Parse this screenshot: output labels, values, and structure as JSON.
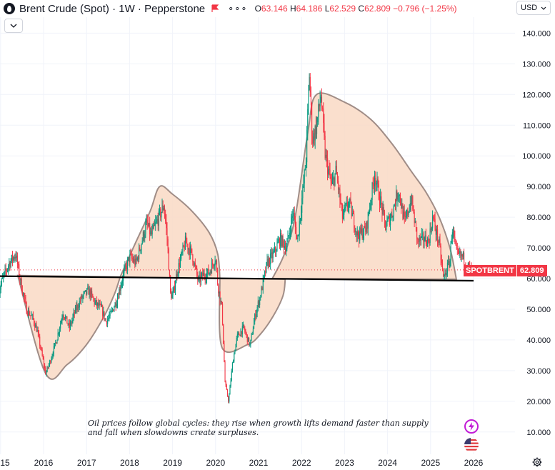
{
  "header": {
    "symbol": "Brent Crude (Spot)",
    "interval": "1W",
    "source": "Pepperstone",
    "more": "∘∘∘",
    "ohlc": {
      "open_label": "O",
      "open": "63.146",
      "high_label": "H",
      "high": "64.186",
      "low_label": "L",
      "low": "62.529",
      "close_label": "C",
      "close": "62.809",
      "change": "−0.796 (−1.25%)"
    }
  },
  "currency_selector": "USD",
  "price_badge": {
    "symbol": "SPOTBRENT",
    "value": "62.809"
  },
  "annotation": "Oil prices follow global cycles: they rise when growth lifts demand faster than supply and fall when slowdowns create surpluses.",
  "colors": {
    "up": "#089981",
    "down": "#f23645",
    "fill": "#f9d9c4",
    "outline": "#a08d87",
    "support": "#000000"
  },
  "chart_data": {
    "type": "candlestick",
    "x_tick_labels": [
      "15",
      "2016",
      "2017",
      "2018",
      "2019",
      "2020",
      "2021",
      "2022",
      "2023",
      "2024",
      "2025",
      "2026"
    ],
    "y_tick_labels": [
      "140.000",
      "130.000",
      "120.000",
      "110.000",
      "100.000",
      "90.000",
      "80.000",
      "70.000",
      "60.000",
      "50.000",
      "40.000",
      "30.000",
      "20.000",
      "10.000"
    ],
    "ylim": [
      5,
      148
    ],
    "xlim": [
      2014.9,
      2026.2
    ],
    "last_price": 62.809,
    "support_level": {
      "from": [
        2014.9,
        60.8
      ],
      "to": [
        2026.0,
        59.3
      ]
    },
    "price_path": [
      [
        2014.95,
        55
      ],
      [
        2015.05,
        60
      ],
      [
        2015.2,
        65
      ],
      [
        2015.35,
        68
      ],
      [
        2015.45,
        60
      ],
      [
        2015.6,
        50
      ],
      [
        2015.75,
        47
      ],
      [
        2015.85,
        43
      ],
      [
        2015.95,
        36
      ],
      [
        2016.05,
        29
      ],
      [
        2016.15,
        33
      ],
      [
        2016.3,
        40
      ],
      [
        2016.45,
        49
      ],
      [
        2016.6,
        44
      ],
      [
        2016.75,
        50
      ],
      [
        2016.9,
        54
      ],
      [
        2017.05,
        56
      ],
      [
        2017.2,
        52
      ],
      [
        2017.35,
        50
      ],
      [
        2017.45,
        46
      ],
      [
        2017.55,
        48
      ],
      [
        2017.7,
        53
      ],
      [
        2017.85,
        61
      ],
      [
        2018.0,
        67
      ],
      [
        2018.15,
        65
      ],
      [
        2018.3,
        73
      ],
      [
        2018.4,
        78
      ],
      [
        2018.5,
        74
      ],
      [
        2018.65,
        79
      ],
      [
        2018.8,
        84
      ],
      [
        2018.88,
        72
      ],
      [
        2018.95,
        55
      ],
      [
        2019.0,
        54
      ],
      [
        2019.1,
        62
      ],
      [
        2019.3,
        72
      ],
      [
        2019.45,
        68
      ],
      [
        2019.6,
        59
      ],
      [
        2019.7,
        61
      ],
      [
        2019.85,
        62
      ],
      [
        2020.0,
        67
      ],
      [
        2020.05,
        58
      ],
      [
        2020.15,
        50
      ],
      [
        2020.22,
        26
      ],
      [
        2020.3,
        20
      ],
      [
        2020.4,
        33
      ],
      [
        2020.5,
        41
      ],
      [
        2020.65,
        44
      ],
      [
        2020.8,
        38
      ],
      [
        2020.92,
        48
      ],
      [
        2021.05,
        55
      ],
      [
        2021.2,
        65
      ],
      [
        2021.35,
        68
      ],
      [
        2021.5,
        73
      ],
      [
        2021.65,
        70
      ],
      [
        2021.8,
        82
      ],
      [
        2021.9,
        72
      ],
      [
        2022.0,
        85
      ],
      [
        2022.1,
        98
      ],
      [
        2022.18,
        127
      ],
      [
        2022.25,
        105
      ],
      [
        2022.35,
        110
      ],
      [
        2022.45,
        120
      ],
      [
        2022.55,
        100
      ],
      [
        2022.7,
        90
      ],
      [
        2022.8,
        95
      ],
      [
        2022.95,
        80
      ],
      [
        2023.1,
        85
      ],
      [
        2023.3,
        74
      ],
      [
        2023.5,
        76
      ],
      [
        2023.7,
        94
      ],
      [
        2023.85,
        84
      ],
      [
        2023.95,
        77
      ],
      [
        2024.1,
        81
      ],
      [
        2024.25,
        89
      ],
      [
        2024.4,
        78
      ],
      [
        2024.55,
        86
      ],
      [
        2024.7,
        72
      ],
      [
        2024.85,
        73
      ],
      [
        2024.95,
        72
      ],
      [
        2025.05,
        80
      ],
      [
        2025.2,
        71
      ],
      [
        2025.3,
        60
      ],
      [
        2025.45,
        66
      ],
      [
        2025.5,
        77
      ],
      [
        2025.6,
        68
      ],
      [
        2025.75,
        67
      ],
      [
        2025.85,
        64
      ],
      [
        2025.93,
        63.15
      ],
      [
        2025.96,
        62.81
      ]
    ],
    "shapes": [
      {
        "name": "cycle-2015-2018",
        "points": [
          [
            2015.4,
            61.0
          ],
          [
            2016.05,
            29.0
          ],
          [
            2016.55,
            32.0
          ],
          [
            2017.0,
            38.5
          ],
          [
            2017.4,
            47.5
          ],
          [
            2017.65,
            55.0
          ],
          [
            2017.78,
            60.5
          ]
        ]
      },
      {
        "name": "cycle-2018-2020",
        "points": [
          [
            2017.78,
            60.5
          ],
          [
            2018.15,
            72.0
          ],
          [
            2018.48,
            82.0
          ],
          [
            2018.7,
            90.0
          ],
          [
            2019.0,
            87.5
          ],
          [
            2019.45,
            82.0
          ],
          [
            2019.85,
            75.0
          ],
          [
            2020.05,
            68.0
          ],
          [
            2020.1,
            60.0
          ]
        ]
      },
      {
        "name": "cycle-2020-2021",
        "points": [
          [
            2020.1,
            60.0
          ],
          [
            2020.15,
            37.5
          ],
          [
            2020.75,
            38.5
          ],
          [
            2021.05,
            42.0
          ],
          [
            2021.35,
            48.0
          ],
          [
            2021.57,
            54.5
          ],
          [
            2021.62,
            59.8
          ]
        ]
      },
      {
        "name": "cycle-2021-2025",
        "points": [
          [
            2021.32,
            60.0
          ],
          [
            2021.6,
            68.0
          ],
          [
            2021.85,
            80.0
          ],
          [
            2022.15,
            108.0
          ],
          [
            2022.35,
            120.0
          ],
          [
            2023.0,
            117.5
          ],
          [
            2023.6,
            112.0
          ],
          [
            2024.1,
            104.0
          ],
          [
            2024.55,
            95.0
          ],
          [
            2024.9,
            88.0
          ],
          [
            2025.2,
            80.0
          ],
          [
            2025.45,
            70.0
          ],
          [
            2025.6,
            59.8
          ]
        ]
      }
    ]
  }
}
